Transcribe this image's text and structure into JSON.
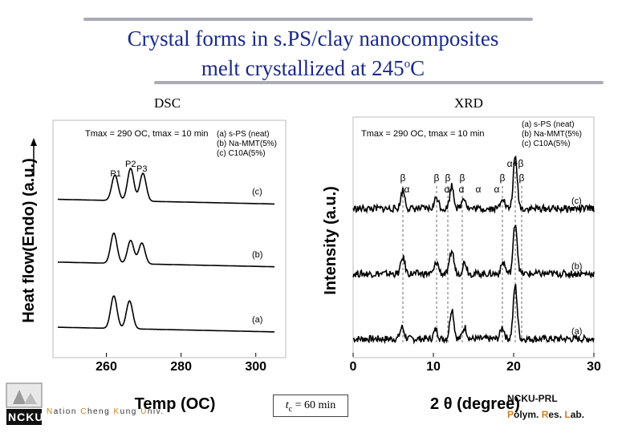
{
  "slide": {
    "title_line1": "Crystal forms in s.PS/clay nanocomposites",
    "title_line2_main": "melt crystallized at 245",
    "title_line2_sup": "o",
    "title_line2_end": "C",
    "footer_left": "Nation Cheng Kung Univ.",
    "footer_logo": "NCKU",
    "footer_center_italic": "t",
    "footer_center_sub": "c",
    "footer_center_rest": " = 60 min",
    "footer_right_line1": "NCKU-PRL",
    "footer_right_line2": "Polym. Res. Lab.",
    "accent_color": "#1a2a8a",
    "letter_accent_color": "#d08020"
  },
  "chart_data": [
    {
      "type": "line",
      "panel": "DSC",
      "panel_label": "DSC",
      "condition": "Tmax = 290 OC, tmax = 10 min",
      "legend": [
        "(a) s-PS (neat)",
        "(b) Na-MMT(5%)",
        "(c) C10A(5%)"
      ],
      "xlabel": "Temp (OC)",
      "ylabel": "Heat flow(Endo) (a.u.)",
      "x_ticks": [
        260,
        280,
        300
      ],
      "xlim": [
        247,
        305
      ],
      "peak_labels": [
        {
          "label": "P1",
          "x": 262.5
        },
        {
          "label": "P2",
          "x": 266.5
        },
        {
          "label": "P3",
          "x": 269.5
        }
      ],
      "series": [
        {
          "name": "(a)",
          "baseline": 0.11,
          "peaks": [
            {
              "x": 262.0,
              "h": 0.14
            },
            {
              "x": 266.2,
              "h": 0.12
            }
          ]
        },
        {
          "name": "(b)",
          "baseline": 0.39,
          "peaks": [
            {
              "x": 262.0,
              "h": 0.13
            },
            {
              "x": 266.5,
              "h": 0.1
            },
            {
              "x": 269.5,
              "h": 0.09
            }
          ]
        },
        {
          "name": "(c)",
          "baseline": 0.66,
          "peaks": [
            {
              "x": 262.3,
              "h": 0.11
            },
            {
              "x": 266.5,
              "h": 0.14
            },
            {
              "x": 269.8,
              "h": 0.12
            }
          ]
        }
      ]
    },
    {
      "type": "line",
      "panel": "XRD",
      "panel_label": "XRD",
      "condition": "Tmax = 290 OC, tmax = 10 min",
      "legend": [
        "(a) s-PS (neat)",
        "(b) Na-MMT(5%)",
        "(c) C10A(5%)"
      ],
      "xlabel": "2 θ (degree)",
      "ylabel": "Intensity (a.u.)",
      "x_ticks": [
        0,
        10,
        20,
        30
      ],
      "xlim": [
        0,
        30
      ],
      "reflections": [
        {
          "label": "β",
          "x": 6.2
        },
        {
          "label": "α",
          "x": 6.7
        },
        {
          "label": "β",
          "x": 10.4
        },
        {
          "label": "β",
          "x": 11.8
        },
        {
          "label": "α",
          "x": 11.7
        },
        {
          "label": "β",
          "x": 13.6
        },
        {
          "label": "α",
          "x": 13.5
        },
        {
          "label": "α",
          "x": 15.6
        },
        {
          "label": "β",
          "x": 18.6
        },
        {
          "label": "α",
          "x": 17.9
        },
        {
          "label": "β",
          "x": 21.0
        },
        {
          "label": "α+β",
          "x": 20.2
        }
      ],
      "series": [
        {
          "name": "(a)",
          "baseline": 0.06,
          "peaks": [
            {
              "x": 6.1,
              "h": 0.05
            },
            {
              "x": 10.3,
              "h": 0.04
            },
            {
              "x": 12.3,
              "h": 0.13
            },
            {
              "x": 13.9,
              "h": 0.05
            },
            {
              "x": 18.6,
              "h": 0.05
            },
            {
              "x": 20.2,
              "h": 0.23
            }
          ]
        },
        {
          "name": "(b)",
          "baseline": 0.34,
          "peaks": [
            {
              "x": 6.2,
              "h": 0.07
            },
            {
              "x": 10.4,
              "h": 0.05
            },
            {
              "x": 12.3,
              "h": 0.1
            },
            {
              "x": 13.9,
              "h": 0.05
            },
            {
              "x": 18.7,
              "h": 0.05
            },
            {
              "x": 20.2,
              "h": 0.22
            }
          ]
        },
        {
          "name": "(c)",
          "baseline": 0.62,
          "peaks": [
            {
              "x": 6.2,
              "h": 0.08
            },
            {
              "x": 10.4,
              "h": 0.05
            },
            {
              "x": 12.3,
              "h": 0.1
            },
            {
              "x": 13.8,
              "h": 0.05
            },
            {
              "x": 18.6,
              "h": 0.05
            },
            {
              "x": 20.2,
              "h": 0.22
            }
          ]
        }
      ]
    }
  ]
}
